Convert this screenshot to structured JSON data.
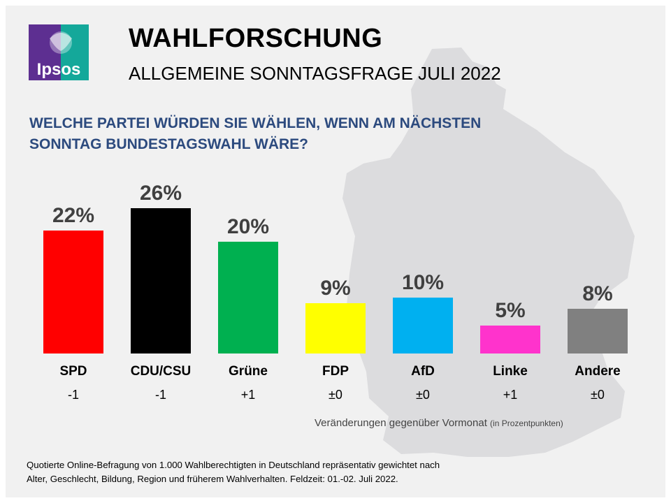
{
  "logo": {
    "text": "Ipsos",
    "colors": {
      "left": "#5d2f91",
      "right": "#14a89a"
    }
  },
  "header": {
    "title": "WAHLFORSCHUNG",
    "subtitle": "ALLGEMEINE SONNTAGSFRAGE JULI 2022"
  },
  "question": {
    "line1": "WELCHE PARTEI WÜRDEN SIE WÄHLEN, WENN AM NÄCHSTEN",
    "line2": "SONNTAG BUNDESTAGSWAHL WÄRE?"
  },
  "chart_data": {
    "type": "bar",
    "categories": [
      "SPD",
      "CDU/CSU",
      "Grüne",
      "FDP",
      "AfD",
      "Linke",
      "Andere"
    ],
    "values": [
      22,
      26,
      20,
      9,
      10,
      5,
      8
    ],
    "value_labels": [
      "22%",
      "26%",
      "20%",
      "9%",
      "10%",
      "5%",
      "8%"
    ],
    "changes": [
      "-1",
      "-1",
      "+1",
      "±0",
      "±0",
      "+1",
      "±0"
    ],
    "colors": [
      "#ff0000",
      "#000000",
      "#00b050",
      "#ffff00",
      "#00b0f0",
      "#ff33cc",
      "#808080"
    ],
    "ylim": [
      0,
      26
    ],
    "title": "",
    "xlabel": "",
    "ylabel": ""
  },
  "change_note": {
    "text": "Veränderungen gegenüber Vormonat",
    "unit": "(in Prozentpunkten)"
  },
  "footnote": {
    "line1": "Quotierte Online-Befragung  von 1.000 Wahlberechtigten  in Deutschland repräsentativ gewichtet nach",
    "line2": "Alter, Geschlecht, Bildung, Region und früherem Wahlverhalten.  Feldzeit: 01.-02. Juli 2022."
  }
}
